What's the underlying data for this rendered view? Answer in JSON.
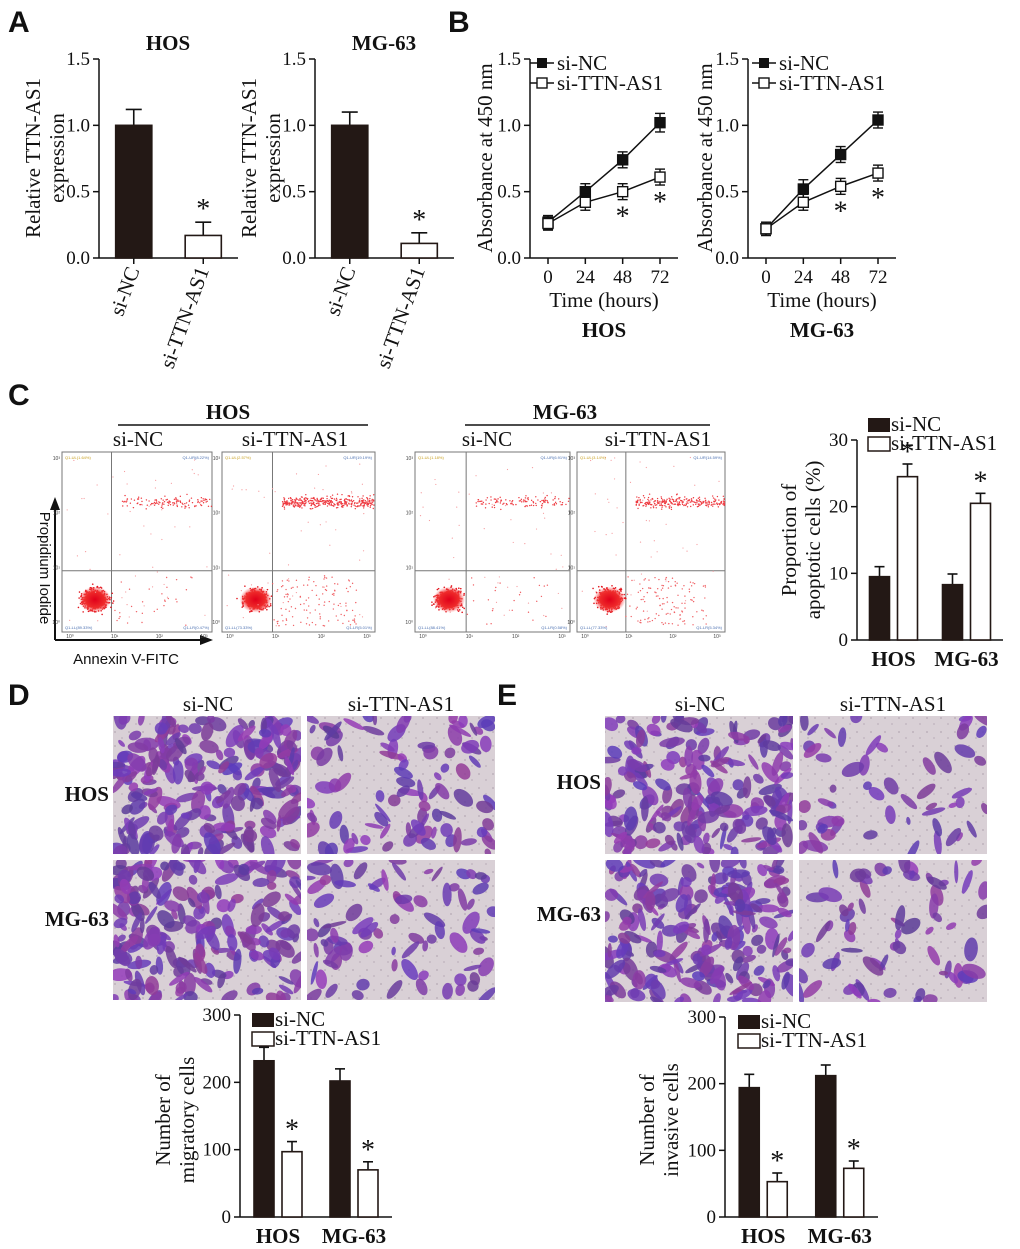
{
  "panels": {
    "A": {
      "letter": "A",
      "ylabel_line1": "Relative TTN-AS1",
      "ylabel_line2": "expression",
      "charts": [
        {
          "title": "HOS"
        },
        {
          "title": "MG-63"
        }
      ]
    },
    "B": {
      "letter": "B",
      "ylabel": "Absorbance at 450 nm",
      "xlabel": "Time (hours)",
      "legend": [
        "si-NC",
        "si-TTN-AS1"
      ],
      "charts": [
        {
          "title": "HOS"
        },
        {
          "title": "MG-63"
        }
      ]
    },
    "C": {
      "letter": "C",
      "groups": [
        {
          "title": "HOS",
          "conditions": [
            "si-NC",
            "si-TTN-AS1"
          ]
        },
        {
          "title": "MG-63",
          "conditions": [
            "si-NC",
            "si-TTN-AS1"
          ]
        }
      ],
      "flow_ylabel": "Propidium Iodide",
      "flow_xlabel": "Annexin V-FITC",
      "flow_quadrants": [
        {
          "ul": "Q1-UL(1.64%)",
          "ur": "Q1-UR(8.22%)",
          "ll": "Q1-LL(89.33%)",
          "lr": "Q1-LR(0.47%)"
        },
        {
          "ul": "Q1-UL(2.57%)",
          "ur": "Q1-UR(19.19%)",
          "ll": "Q1-LL(73.33%)",
          "lr": "Q1-LR(5.01%)"
        },
        {
          "ul": "Q1-UL(1.18%)",
          "ur": "Q1-UR(6.91%)",
          "ll": "Q1-LL(88.41%)",
          "lr": "Q1-LR(0.58%)"
        },
        {
          "ul": "Q1-UL(3.14%)",
          "ur": "Q1-UR(14.59%)",
          "ll": "Q1-LL(77.33%)",
          "lr": "Q1-LR(5.34%)"
        }
      ],
      "flow_ticks": [
        "10⁰",
        "10¹",
        "10²",
        "10³"
      ],
      "bar_ylabel_line1": "Proportion of",
      "bar_ylabel_line2": "apoptotic cells (%)",
      "legend": [
        "si-NC",
        "si-TTN-AS1"
      ]
    },
    "D": {
      "letter": "D",
      "col_labels": [
        "si-NC",
        "si-TTN-AS1"
      ],
      "row_labels": [
        "HOS",
        "MG-63"
      ],
      "ylabel_line1": "Number of",
      "ylabel_line2": "migratory cells",
      "legend": [
        "si-NC",
        "si-TTN-AS1"
      ]
    },
    "E": {
      "letter": "E",
      "col_labels": [
        "si-NC",
        "si-TTN-AS1"
      ],
      "row_labels": [
        "HOS",
        "MG-63"
      ],
      "ylabel_line1": "Number of",
      "ylabel_line2": "invasive cells",
      "legend": [
        "si-NC",
        "si-TTN-AS1"
      ]
    }
  },
  "significance_marker": "*",
  "chart_data": [
    {
      "id": "A-HOS",
      "type": "bar",
      "title": "HOS",
      "ylabel": "Relative TTN-AS1 expression",
      "categories": [
        "si-NC",
        "si-TTN-AS1"
      ],
      "values": [
        1.0,
        0.17
      ],
      "errors": [
        0.12,
        0.1
      ],
      "significant": [
        false,
        true
      ],
      "ylim": [
        0,
        1.5
      ],
      "yticks": [
        "0.0",
        "0.5",
        "1.0",
        "1.5"
      ]
    },
    {
      "id": "A-MG63",
      "type": "bar",
      "title": "MG-63",
      "ylabel": "Relative TTN-AS1 expression",
      "categories": [
        "si-NC",
        "si-TTN-AS1"
      ],
      "values": [
        1.0,
        0.11
      ],
      "errors": [
        0.1,
        0.08
      ],
      "significant": [
        false,
        true
      ],
      "ylim": [
        0,
        1.5
      ],
      "yticks": [
        "0.0",
        "0.5",
        "1.0",
        "1.5"
      ]
    },
    {
      "id": "B-HOS",
      "type": "line",
      "title": "HOS",
      "xlabel": "Time (hours)",
      "ylabel": "Absorbance at 450 nm",
      "x": [
        0,
        24,
        48,
        72
      ],
      "xticks": [
        "0",
        "24",
        "48",
        "72"
      ],
      "series": [
        {
          "name": "si-NC",
          "values": [
            0.27,
            0.5,
            0.74,
            1.02
          ],
          "errors": [
            0.05,
            0.06,
            0.06,
            0.07
          ],
          "marker": "filled-square"
        },
        {
          "name": "si-TTN-AS1",
          "values": [
            0.26,
            0.42,
            0.5,
            0.61
          ],
          "errors": [
            0.05,
            0.06,
            0.06,
            0.06
          ],
          "marker": "open-square",
          "significant": [
            false,
            false,
            true,
            true
          ]
        }
      ],
      "ylim": [
        0,
        1.5
      ],
      "yticks": [
        "0.0",
        "0.5",
        "1.0",
        "1.5"
      ]
    },
    {
      "id": "B-MG63",
      "type": "line",
      "title": "MG-63",
      "xlabel": "Time (hours)",
      "ylabel": "Absorbance at 450 nm",
      "x": [
        0,
        24,
        48,
        72
      ],
      "xticks": [
        "0",
        "24",
        "48",
        "72"
      ],
      "series": [
        {
          "name": "si-NC",
          "values": [
            0.22,
            0.52,
            0.78,
            1.04
          ],
          "errors": [
            0.05,
            0.07,
            0.06,
            0.06
          ],
          "marker": "filled-square"
        },
        {
          "name": "si-TTN-AS1",
          "values": [
            0.22,
            0.42,
            0.54,
            0.64
          ],
          "errors": [
            0.05,
            0.06,
            0.06,
            0.06
          ],
          "marker": "open-square",
          "significant": [
            false,
            false,
            true,
            true
          ]
        }
      ],
      "ylim": [
        0,
        1.5
      ],
      "yticks": [
        "0.0",
        "0.5",
        "1.0",
        "1.5"
      ]
    },
    {
      "id": "C-apoptosis",
      "type": "bar",
      "ylabel": "Proportion of apoptotic cells (%)",
      "categories": [
        "HOS",
        "MG-63"
      ],
      "series": [
        {
          "name": "si-NC",
          "values": [
            9.5,
            8.3
          ],
          "errors": [
            1.5,
            1.6
          ]
        },
        {
          "name": "si-TTN-AS1",
          "values": [
            24.5,
            20.5
          ],
          "errors": [
            1.9,
            1.5
          ],
          "significant": [
            true,
            true
          ]
        }
      ],
      "ylim": [
        0,
        30
      ],
      "yticks": [
        "0",
        "10",
        "20",
        "30"
      ],
      "legend": "top-left"
    },
    {
      "id": "D-migration",
      "type": "bar",
      "ylabel": "Number of migratory cells",
      "categories": [
        "HOS",
        "MG-63"
      ],
      "series": [
        {
          "name": "si-NC",
          "values": [
            232,
            202
          ],
          "errors": [
            20,
            18
          ]
        },
        {
          "name": "si-TTN-AS1",
          "values": [
            97,
            70
          ],
          "errors": [
            15,
            12
          ],
          "significant": [
            true,
            true
          ]
        }
      ],
      "ylim": [
        0,
        300
      ],
      "yticks": [
        "0",
        "100",
        "200",
        "300"
      ],
      "legend": "top-left"
    },
    {
      "id": "E-invasion",
      "type": "bar",
      "ylabel": "Number of invasive cells",
      "categories": [
        "HOS",
        "MG-63"
      ],
      "series": [
        {
          "name": "si-NC",
          "values": [
            194,
            212
          ],
          "errors": [
            20,
            16
          ]
        },
        {
          "name": "si-TTN-AS1",
          "values": [
            53,
            73
          ],
          "errors": [
            13,
            11
          ],
          "significant": [
            true,
            true
          ]
        }
      ],
      "ylim": [
        0,
        300
      ],
      "yticks": [
        "0",
        "100",
        "200",
        "300"
      ],
      "legend": "top-left"
    }
  ]
}
